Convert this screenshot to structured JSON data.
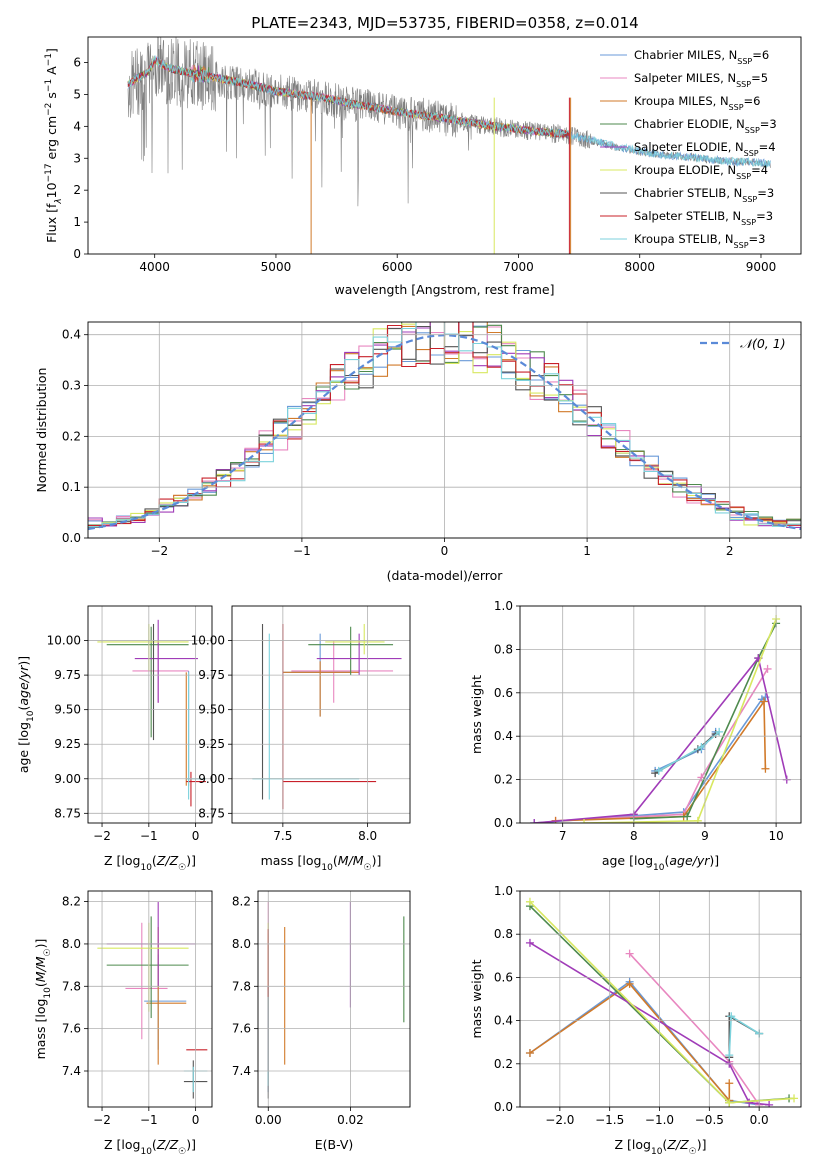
{
  "title": "PLATE=2343, MJD=53735, FIBERID=0358, z=0.014",
  "colors": [
    "#6a9ad8",
    "#e887c0",
    "#d17a2a",
    "#4e8a4e",
    "#a03cb8",
    "#d8e860",
    "#555555",
    "#c8202a",
    "#7cd2dc"
  ],
  "legend_names": [
    "Chabrier MILES",
    "Salpeter MILES",
    "Kroupa MILES",
    "Chabrier ELODIE",
    "Salpeter ELODIE",
    "Kroupa ELODIE",
    "Chabrier STELIB",
    "Salpeter STELIB",
    "Kroupa STELIB"
  ],
  "legend_nssp": [
    6,
    5,
    6,
    3,
    4,
    4,
    3,
    3,
    3
  ],
  "legend_nssp_label": "N",
  "legend_nssp_sub": "SSP",
  "legend_gauss": "𝒩(0, 1)",
  "chart_data": [
    {
      "id": "spectrum",
      "type": "line",
      "xlabel": "wavelength [Angstrom, rest frame]",
      "ylabel_parts": [
        "Flux [f",
        "λ",
        "10",
        "−17",
        " erg cm",
        "−2",
        " s",
        "−1",
        " A",
        "−1",
        "]"
      ],
      "xlim": [
        3450,
        9330
      ],
      "ylim": [
        0,
        6.8
      ],
      "xticks": [
        4000,
        5000,
        6000,
        7000,
        8000,
        9000
      ],
      "yticks": [
        0,
        1,
        2,
        3,
        4,
        5,
        6
      ],
      "data_x": [
        3780,
        3850,
        3950,
        4000,
        4100,
        4200,
        4400,
        4600,
        4800,
        5000,
        5200,
        5400,
        5600,
        5800,
        6000,
        6200,
        6400,
        6600,
        6800,
        7000,
        7200,
        7400,
        7600,
        7800,
        8000,
        8200,
        8400,
        8600,
        8800,
        9000,
        9080
      ],
      "data_y": [
        5.2,
        5.4,
        5.6,
        6.0,
        5.8,
        5.7,
        5.6,
        5.4,
        5.3,
        5.1,
        5.0,
        4.9,
        4.7,
        4.6,
        4.45,
        4.35,
        4.25,
        4.1,
        4.0,
        3.9,
        3.8,
        3.75,
        3.55,
        3.35,
        3.2,
        3.1,
        3.05,
        2.95,
        2.9,
        2.85,
        2.8
      ],
      "model_x": [
        3780,
        3850,
        3950,
        4000,
        4100,
        4200,
        4400,
        4600,
        4800,
        5000,
        5200,
        5400,
        5600,
        5800,
        6000,
        6200,
        6400,
        6600,
        6800,
        7000,
        7200,
        7400,
        7600,
        7800,
        8000,
        8200,
        8400,
        8600,
        8800,
        9000,
        9080
      ],
      "model_y": [
        5.3,
        5.5,
        5.7,
        6.1,
        5.85,
        5.75,
        5.6,
        5.45,
        5.3,
        5.1,
        5.0,
        4.9,
        4.72,
        4.6,
        4.45,
        4.35,
        4.25,
        4.12,
        4.0,
        3.92,
        3.82,
        3.76,
        3.58,
        3.38,
        3.22,
        3.1,
        3.05,
        2.95,
        2.9,
        2.86,
        2.82
      ]
    },
    {
      "id": "residuals",
      "type": "step",
      "xlabel": "(data-model)/error",
      "ylabel": "Normed distribution",
      "xlim": [
        -2.5,
        2.5
      ],
      "ylim": [
        0,
        0.425
      ],
      "xticks": [
        -2,
        -1,
        0,
        1,
        2
      ],
      "yticks": [
        0.0,
        0.1,
        0.2,
        0.3,
        0.4
      ],
      "bin_width": 0.1
    },
    {
      "id": "age_vs_Z",
      "type": "errorbar",
      "xlabel": "Z [log10(Z/Z☉)]",
      "ylabel": "age  [log10(age/yr)]",
      "xlim": [
        -2.3,
        0.35
      ],
      "ylim": [
        8.68,
        10.25
      ],
      "xticks": [
        -2,
        -1,
        0
      ],
      "yticks": [
        8.75,
        9.0,
        9.25,
        9.5,
        9.75,
        10.0
      ],
      "points": [
        {
          "c": 0,
          "x": -0.15,
          "y": 9.42,
          "xlo": -0.15,
          "xhi": -0.15,
          "ylo": 8.95,
          "yhi": 9.78
        },
        {
          "c": 1,
          "x": -0.8,
          "y": 9.78,
          "xlo": -1.35,
          "xhi": -0.15,
          "ylo": 9.55,
          "yhi": 10.0
        },
        {
          "c": 2,
          "x": -0.2,
          "y": 9.4,
          "xlo": -0.2,
          "xhi": -0.2,
          "ylo": 8.95,
          "yhi": 9.77
        },
        {
          "c": 3,
          "x": -0.95,
          "y": 9.97,
          "xlo": -1.9,
          "xhi": -0.15,
          "ylo": 9.3,
          "yhi": 10.1
        },
        {
          "c": 4,
          "x": -0.8,
          "y": 9.87,
          "xlo": -1.3,
          "xhi": 0.05,
          "ylo": 9.55,
          "yhi": 10.15
        },
        {
          "c": 5,
          "x": -1.0,
          "y": 9.99,
          "xlo": -2.1,
          "xhi": -0.15,
          "ylo": 9.78,
          "yhi": 10.12
        },
        {
          "c": 6,
          "x": -0.9,
          "y": 9.77,
          "xlo": -0.9,
          "xhi": -0.9,
          "ylo": 9.28,
          "yhi": 10.12
        },
        {
          "c": 7,
          "x": -0.1,
          "y": 8.98,
          "xlo": -0.2,
          "xhi": 0.22,
          "ylo": 8.8,
          "yhi": 9.05
        },
        {
          "c": 8,
          "x": -0.15,
          "y": 9.0,
          "xlo": -0.2,
          "xhi": 0.22,
          "ylo": 8.85,
          "yhi": 9.77
        }
      ]
    },
    {
      "id": "age_vs_mass",
      "type": "errorbar",
      "xlabel": "mass [log10(M/M☉)]",
      "ylabel": "",
      "xlim": [
        7.2,
        8.25
      ],
      "ylim": [
        8.68,
        10.25
      ],
      "xticks": [
        7.5,
        8.0
      ],
      "yticks": [
        8.75,
        9.0,
        9.25,
        9.5,
        9.75,
        10.0
      ],
      "points": [
        {
          "c": 0,
          "x": 7.72,
          "y": 9.77,
          "xlo": 7.5,
          "xhi": 7.9,
          "ylo": 9.45,
          "yhi": 10.05
        },
        {
          "c": 1,
          "x": 7.8,
          "y": 9.78,
          "xlo": 7.55,
          "xhi": 8.15,
          "ylo": 9.55,
          "yhi": 10.0
        },
        {
          "c": 2,
          "x": 7.72,
          "y": 9.77,
          "xlo": 7.5,
          "xhi": 7.95,
          "ylo": 9.45,
          "yhi": 9.85
        },
        {
          "c": 3,
          "x": 7.9,
          "y": 9.97,
          "xlo": 7.65,
          "xhi": 8.15,
          "ylo": 9.75,
          "yhi": 10.1
        },
        {
          "c": 4,
          "x": 7.95,
          "y": 9.87,
          "xlo": 7.7,
          "xhi": 8.2,
          "ylo": 9.75,
          "yhi": 10.05
        },
        {
          "c": 5,
          "x": 7.98,
          "y": 9.99,
          "xlo": 7.75,
          "xhi": 8.1,
          "ylo": 9.9,
          "yhi": 10.12
        },
        {
          "c": 6,
          "x": 7.38,
          "y": 9.0,
          "xlo": 7.38,
          "xhi": 7.38,
          "ylo": 8.85,
          "yhi": 10.12
        },
        {
          "c": 7,
          "x": 7.5,
          "y": 8.98,
          "xlo": 7.5,
          "xhi": 8.05,
          "ylo": 8.78,
          "yhi": 10.12
        },
        {
          "c": 8,
          "x": 7.42,
          "y": 9.0,
          "xlo": 7.32,
          "xhi": 7.95,
          "ylo": 8.85,
          "yhi": 10.05
        }
      ]
    },
    {
      "id": "mass_weight_vs_age",
      "type": "line",
      "xlabel": "age  [log10(age/yr)]",
      "ylabel": "mass weight",
      "xlim": [
        6.4,
        10.35
      ],
      "ylim": [
        0,
        1.0
      ],
      "xticks": [
        7,
        8,
        9,
        10
      ],
      "yticks": [
        0.0,
        0.2,
        0.4,
        0.6,
        0.8,
        1.0
      ],
      "series": [
        {
          "c": 0,
          "x": [
            8.3,
            8.95,
            9.15
          ],
          "y": [
            0.24,
            0.34,
            0.42
          ]
        },
        {
          "c": 0,
          "x": [
            6.6,
            8.7,
            9.8,
            9.85
          ],
          "y": [
            0.0,
            0.05,
            0.57,
            0.58
          ]
        },
        {
          "c": 1,
          "x": [
            6.9,
            8.7,
            8.95,
            9.88
          ],
          "y": [
            0.01,
            0.04,
            0.21,
            0.71
          ]
        },
        {
          "c": 2,
          "x": [
            6.9,
            8.7,
            9.83,
            9.85
          ],
          "y": [
            0.01,
            0.03,
            0.56,
            0.25
          ]
        },
        {
          "c": 3,
          "x": [
            8.0,
            8.75,
            9.75,
            10.0
          ],
          "y": [
            0.02,
            0.03,
            0.76,
            0.92
          ]
        },
        {
          "c": 4,
          "x": [
            6.6,
            8.0,
            9.75,
            10.15
          ],
          "y": [
            0.0,
            0.04,
            0.76,
            0.2
          ]
        },
        {
          "c": 5,
          "x": [
            7.3,
            8.9,
            10.0
          ],
          "y": [
            0.0,
            0.01,
            0.94
          ]
        },
        {
          "c": 6,
          "x": [
            8.3,
            8.9,
            9.15
          ],
          "y": [
            0.23,
            0.34,
            0.41
          ]
        },
        {
          "c": 8,
          "x": [
            8.35,
            8.95,
            9.2
          ],
          "y": [
            0.24,
            0.35,
            0.42
          ]
        }
      ]
    },
    {
      "id": "mass_vs_Z",
      "type": "errorbar",
      "xlabel": "Z [log10(Z/Z☉)]",
      "ylabel": "mass [log10(M/M☉)]",
      "xlim": [
        -2.3,
        0.35
      ],
      "ylim": [
        7.23,
        8.25
      ],
      "xticks": [
        -2,
        -1,
        0
      ],
      "yticks": [
        7.4,
        7.6,
        7.8,
        8.0,
        8.2
      ],
      "points": [
        {
          "c": 0,
          "x": -0.8,
          "y": 7.73,
          "xlo": -1.1,
          "xhi": -0.2,
          "ylo": 7.5,
          "yhi": 7.95
        },
        {
          "c": 1,
          "x": -1.15,
          "y": 7.79,
          "xlo": -1.5,
          "xhi": -0.6,
          "ylo": 7.55,
          "yhi": 8.1
        },
        {
          "c": 2,
          "x": -0.8,
          "y": 7.72,
          "xlo": -1.05,
          "xhi": -0.2,
          "ylo": 7.43,
          "yhi": 8.08
        },
        {
          "c": 3,
          "x": -0.95,
          "y": 7.9,
          "xlo": -1.9,
          "xhi": -0.15,
          "ylo": 7.65,
          "yhi": 8.13
        },
        {
          "c": 4,
          "x": -0.8,
          "y": 8.0,
          "xlo": -1.9,
          "xhi": 0.0,
          "ylo": 7.8,
          "yhi": 8.2
        },
        {
          "c": 5,
          "x": -1.0,
          "y": 7.98,
          "xlo": -2.1,
          "xhi": -0.15,
          "ylo": 7.68,
          "yhi": 8.1
        },
        {
          "c": 6,
          "x": -0.05,
          "y": 7.35,
          "xlo": -0.25,
          "xhi": 0.25,
          "ylo": 7.27,
          "yhi": 7.45
        },
        {
          "c": 7,
          "x": -0.05,
          "y": 7.5,
          "xlo": -0.2,
          "xhi": 0.25,
          "ylo": 7.5,
          "yhi": 7.5
        },
        {
          "c": 8,
          "x": -0.05,
          "y": 7.4,
          "xlo": -0.25,
          "xhi": 0.25,
          "ylo": 7.3,
          "yhi": 7.42
        }
      ]
    },
    {
      "id": "mass_vs_ebv",
      "type": "errorbar",
      "xlabel": "E(B-V)",
      "ylabel": "",
      "xlim": [
        -0.0025,
        0.0345
      ],
      "ylim": [
        7.23,
        8.25
      ],
      "xticks": [
        0.0,
        0.02
      ],
      "yticks": [
        7.4,
        7.6,
        7.8,
        8.0,
        8.2
      ],
      "points": [
        {
          "c": 0,
          "x": 0.0,
          "y": 7.8,
          "xlo": 0.0,
          "xhi": 0.0,
          "ylo": 7.3,
          "yhi": 8.05
        },
        {
          "c": 1,
          "x": 0.0,
          "y": 7.9,
          "xlo": 0.0,
          "xhi": 0.0,
          "ylo": 7.5,
          "yhi": 8.2
        },
        {
          "c": 2,
          "x": 0.004,
          "y": 7.75,
          "xlo": 0.004,
          "xhi": 0.004,
          "ylo": 7.43,
          "yhi": 8.08
        },
        {
          "c": 3,
          "x": 0.033,
          "y": 7.9,
          "xlo": 0.033,
          "xhi": 0.033,
          "ylo": 7.63,
          "yhi": 8.13
        },
        {
          "c": 4,
          "x": 0.02,
          "y": 7.95,
          "xlo": 0.02,
          "xhi": 0.02,
          "ylo": 7.7,
          "yhi": 8.2
        },
        {
          "c": 5,
          "x": 0.0,
          "y": 7.95,
          "xlo": 0.0,
          "xhi": 0.0,
          "ylo": 7.7,
          "yhi": 8.1
        },
        {
          "c": 6,
          "x": 0.0,
          "y": 7.5,
          "xlo": 0.0,
          "xhi": 0.0,
          "ylo": 7.27,
          "yhi": 7.8
        },
        {
          "c": 7,
          "x": 0.0,
          "y": 7.75,
          "xlo": 0.0,
          "xhi": 0.0,
          "ylo": 7.4,
          "yhi": 8.07
        },
        {
          "c": 8,
          "x": 0.0,
          "y": 7.5,
          "xlo": 0.0,
          "xhi": 0.0,
          "ylo": 7.33,
          "yhi": 7.75
        }
      ]
    },
    {
      "id": "mass_weight_vs_Z",
      "type": "line",
      "xlabel": "Z [log10(Z/Z☉)]",
      "ylabel": "mass weight",
      "xlim": [
        -2.4,
        0.42
      ],
      "ylim": [
        0,
        1.0
      ],
      "xticks": [
        -2.0,
        -1.5,
        -1.0,
        -0.5,
        0.0
      ],
      "yticks": [
        0.0,
        0.2,
        0.4,
        0.6,
        0.8,
        1.0
      ],
      "series": [
        {
          "c": 0,
          "x": [
            -2.3,
            -1.3,
            -0.3,
            0.0
          ],
          "y": [
            0.25,
            0.58,
            0.03,
            0.01
          ]
        },
        {
          "c": 1,
          "x": [
            -1.3,
            -0.3,
            0.0
          ],
          "y": [
            0.71,
            0.21,
            0.01
          ]
        },
        {
          "c": 2,
          "x": [
            -2.3,
            -1.3,
            -0.3,
            -0.3
          ],
          "y": [
            0.25,
            0.57,
            0.03,
            0.11
          ]
        },
        {
          "c": 3,
          "x": [
            -2.3,
            -0.3,
            0.3
          ],
          "y": [
            0.93,
            0.02,
            0.04
          ]
        },
        {
          "c": 4,
          "x": [
            -2.3,
            -0.3,
            -0.1,
            0.1
          ],
          "y": [
            0.76,
            0.2,
            0.02,
            0.01
          ]
        },
        {
          "c": 5,
          "x": [
            -2.3,
            -0.3,
            0.35
          ],
          "y": [
            0.95,
            0.02,
            0.04
          ]
        },
        {
          "c": 6,
          "x": [
            -0.3,
            -0.3,
            0.0
          ],
          "y": [
            0.23,
            0.42,
            0.34
          ]
        },
        {
          "c": 8,
          "x": [
            -0.3,
            -0.28,
            0.0
          ],
          "y": [
            0.24,
            0.42,
            0.34
          ]
        }
      ]
    }
  ]
}
